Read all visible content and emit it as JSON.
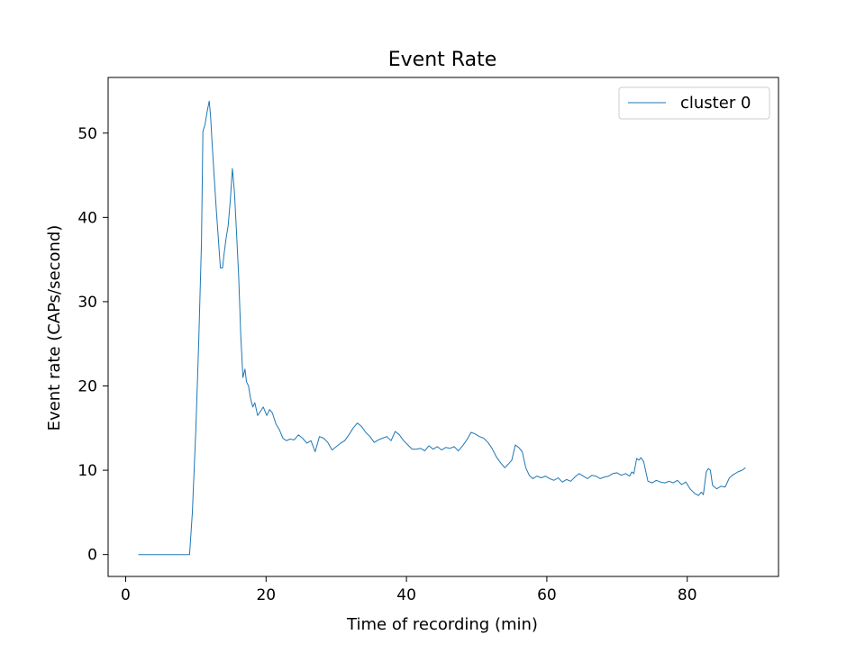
{
  "chart_data": {
    "type": "line",
    "title": "Event Rate",
    "xlabel": "Time of recording (min)",
    "ylabel": "Event rate (CAPs/second)",
    "xlim": [
      -2.5,
      93
    ],
    "ylim": [
      -2.6,
      56.6
    ],
    "xticks": [
      0,
      20,
      40,
      60,
      80
    ],
    "yticks": [
      0,
      10,
      20,
      30,
      40,
      50
    ],
    "grid": false,
    "legend_position": "top-right",
    "series": [
      {
        "name": "cluster 0",
        "color": "#1f77b4",
        "x": [
          1.8,
          3,
          5,
          7,
          9.1,
          9.5,
          10,
          10.4,
          10.8,
          11.0,
          11.3,
          11.6,
          11.9,
          12.1,
          12.3,
          12.6,
          12.9,
          13.2,
          13.5,
          13.8,
          14.0,
          14.3,
          14.6,
          14.9,
          15.2,
          15.5,
          15.8,
          16.1,
          16.4,
          16.7,
          17.0,
          17.2,
          17.5,
          17.8,
          18.1,
          18.4,
          18.8,
          19.2,
          19.6,
          20.1,
          20.5,
          20.9,
          21.4,
          21.9,
          22.4,
          22.9,
          23.4,
          24.0,
          24.6,
          25.2,
          25.8,
          26.4,
          27.0,
          27.6,
          28.2,
          28.8,
          29.4,
          30.0,
          30.6,
          31.2,
          31.8,
          32.4,
          33.0,
          33.6,
          34.2,
          34.8,
          35.4,
          36.0,
          36.6,
          37.2,
          37.8,
          38.4,
          39.0,
          39.6,
          40.2,
          40.8,
          41.4,
          42.0,
          42.6,
          43.2,
          43.8,
          44.4,
          45.0,
          45.6,
          46.2,
          46.8,
          47.4,
          48.0,
          48.6,
          49.2,
          49.8,
          50.4,
          51.0,
          51.6,
          52.2,
          52.8,
          53.4,
          54.0,
          54.6,
          55.0,
          55.5,
          56.0,
          56.5,
          57.0,
          57.5,
          58.0,
          58.6,
          59.2,
          59.8,
          60.4,
          61.0,
          61.6,
          62.2,
          62.8,
          63.4,
          64.0,
          64.6,
          65.2,
          65.8,
          66.4,
          67.0,
          67.6,
          68.2,
          68.8,
          69.4,
          70.0,
          70.6,
          71.2,
          71.8,
          72.1,
          72.4,
          72.8,
          73.1,
          73.4,
          73.8,
          74.4,
          75.0,
          75.6,
          76.2,
          76.8,
          77.4,
          78.0,
          78.6,
          79.2,
          79.8,
          80.4,
          81.0,
          81.6,
          82.0,
          82.3,
          82.7,
          83.0,
          83.3,
          83.6,
          84.2,
          84.8,
          85.4,
          86.0,
          86.6,
          87.2,
          87.8,
          88.3
        ],
        "y": [
          0,
          0,
          0,
          0,
          0,
          5,
          15,
          25,
          37,
          50.2,
          51,
          52.5,
          53.8,
          52,
          49,
          45,
          41,
          37.5,
          34,
          34,
          35.5,
          37.5,
          39,
          42,
          45.8,
          43,
          38,
          33,
          26,
          21,
          22,
          20.5,
          20,
          18.5,
          17.5,
          18,
          16.5,
          17,
          17.5,
          16.5,
          17.2,
          16.8,
          15.5,
          14.8,
          13.8,
          13.5,
          13.7,
          13.6,
          14.2,
          13.8,
          13.2,
          13.5,
          12.2,
          14.0,
          13.8,
          13.3,
          12.4,
          12.8,
          13.2,
          13.5,
          14.2,
          15.0,
          15.6,
          15.2,
          14.5,
          14.0,
          13.3,
          13.6,
          13.8,
          14.0,
          13.5,
          14.6,
          14.2,
          13.5,
          13.0,
          12.5,
          12.5,
          12.6,
          12.3,
          12.9,
          12.5,
          12.8,
          12.4,
          12.7,
          12.6,
          12.8,
          12.3,
          12.9,
          13.6,
          14.5,
          14.3,
          14.0,
          13.8,
          13.3,
          12.6,
          11.6,
          10.9,
          10.3,
          10.8,
          11.2,
          13.0,
          12.7,
          12.2,
          10.3,
          9.4,
          9.0,
          9.3,
          9.1,
          9.3,
          9.0,
          8.8,
          9.1,
          8.6,
          8.9,
          8.7,
          9.2,
          9.6,
          9.3,
          9.0,
          9.4,
          9.3,
          9.0,
          9.2,
          9.3,
          9.6,
          9.7,
          9.4,
          9.6,
          9.3,
          9.8,
          9.6,
          11.4,
          11.2,
          11.5,
          11.0,
          8.7,
          8.5,
          8.8,
          8.6,
          8.5,
          8.7,
          8.5,
          8.8,
          8.3,
          8.6,
          7.8,
          7.3,
          7.0,
          7.4,
          7.1,
          9.8,
          10.2,
          10.0,
          8.2,
          7.8,
          8.1,
          8.0,
          9.1,
          9.5,
          9.8,
          10.0,
          10.3
        ]
      }
    ]
  }
}
